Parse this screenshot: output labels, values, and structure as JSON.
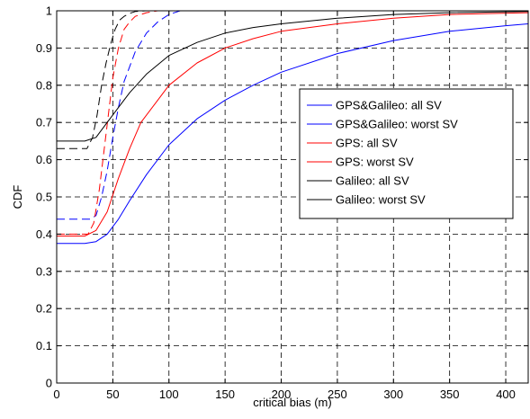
{
  "chart_data": {
    "type": "line",
    "title": "",
    "xlabel": "critical bias (m)",
    "ylabel": "CDF",
    "xlim": [
      0,
      420
    ],
    "ylim": [
      0,
      1
    ],
    "xticks": [
      0,
      50,
      100,
      150,
      200,
      250,
      300,
      350,
      400
    ],
    "yticks": [
      0,
      0.1,
      0.2,
      0.3,
      0.4,
      0.5,
      0.6,
      0.7,
      0.8,
      0.9,
      1
    ],
    "grid": true,
    "legend_position": "center-right",
    "series": [
      {
        "name": "GPS&Galileo: all SV",
        "color": "#0000ff",
        "dash": "solid",
        "x": [
          0,
          25,
          35,
          45,
          55,
          65,
          80,
          100,
          125,
          150,
          175,
          200,
          250,
          300,
          350,
          400,
          420
        ],
        "y": [
          0.375,
          0.375,
          0.38,
          0.4,
          0.44,
          0.49,
          0.56,
          0.64,
          0.71,
          0.76,
          0.8,
          0.835,
          0.885,
          0.92,
          0.945,
          0.96,
          0.965
        ]
      },
      {
        "name": "GPS&Galileo: worst SV",
        "color": "#0000ff",
        "dash": "dashed",
        "x": [
          0,
          30,
          35,
          40,
          45,
          50,
          55,
          60,
          70,
          80,
          90,
          100,
          110
        ],
        "y": [
          0.44,
          0.44,
          0.45,
          0.5,
          0.57,
          0.66,
          0.74,
          0.81,
          0.89,
          0.94,
          0.97,
          0.99,
          1.0
        ]
      },
      {
        "name": "GPS: all SV",
        "color": "#ff0000",
        "dash": "solid",
        "x": [
          0,
          25,
          35,
          45,
          55,
          65,
          75,
          90,
          100,
          125,
          150,
          175,
          200,
          250,
          300,
          350,
          420
        ],
        "y": [
          0.395,
          0.395,
          0.41,
          0.46,
          0.55,
          0.63,
          0.7,
          0.76,
          0.8,
          0.86,
          0.9,
          0.925,
          0.945,
          0.965,
          0.98,
          0.99,
          0.995
        ]
      },
      {
        "name": "GPS: worst SV",
        "color": "#ff0000",
        "dash": "dashed",
        "x": [
          0,
          28,
          33,
          38,
          42,
          46,
          50,
          55,
          60,
          65,
          70,
          80,
          90
        ],
        "y": [
          0.4,
          0.4,
          0.43,
          0.52,
          0.62,
          0.72,
          0.82,
          0.9,
          0.95,
          0.97,
          0.985,
          0.995,
          1.0
        ]
      },
      {
        "name": "Galileo: all SV",
        "color": "#000000",
        "dash": "solid",
        "x": [
          0,
          25,
          35,
          45,
          55,
          65,
          80,
          100,
          125,
          150,
          175,
          200,
          250,
          300,
          350,
          420
        ],
        "y": [
          0.65,
          0.65,
          0.66,
          0.7,
          0.74,
          0.78,
          0.83,
          0.88,
          0.915,
          0.94,
          0.955,
          0.965,
          0.98,
          0.99,
          0.995,
          0.998
        ]
      },
      {
        "name": "Galileo: worst SV",
        "color": "#000000",
        "dash": "dashed",
        "x": [
          0,
          27,
          32,
          36,
          40,
          44,
          48,
          52,
          56,
          60,
          65,
          70,
          80
        ],
        "y": [
          0.63,
          0.63,
          0.66,
          0.72,
          0.8,
          0.86,
          0.91,
          0.95,
          0.975,
          0.985,
          0.993,
          0.998,
          1.0
        ]
      }
    ]
  }
}
